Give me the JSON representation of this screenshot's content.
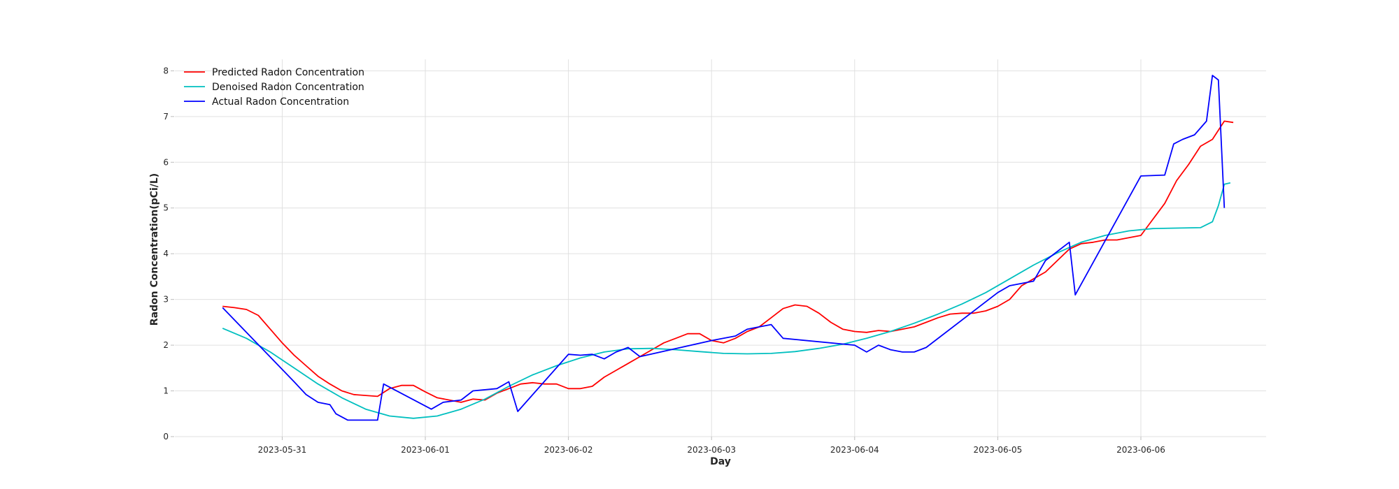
{
  "chart_data": {
    "type": "line",
    "title": "",
    "xlabel": "Day",
    "ylabel": "Radon Concentration(pCi/L)",
    "xlim": [
      "2023-05-30 06:00",
      "2023-06-06 21:00"
    ],
    "ylim": [
      0,
      8.25
    ],
    "x_ticks": [
      "2023-05-31",
      "2023-06-01",
      "2023-06-02",
      "2023-06-03",
      "2023-06-04",
      "2023-06-05",
      "2023-06-06"
    ],
    "y_ticks": [
      0,
      1,
      2,
      3,
      4,
      5,
      6,
      7,
      8
    ],
    "grid": true,
    "legend_position": "top-left",
    "series": [
      {
        "name": "Predicted Radon Concentration",
        "color": "#ff0000",
        "points": [
          [
            "2023-05-30 14:00",
            2.85
          ],
          [
            "2023-05-30 16:00",
            2.82
          ],
          [
            "2023-05-30 18:00",
            2.78
          ],
          [
            "2023-05-30 20:00",
            2.65
          ],
          [
            "2023-05-30 22:00",
            2.35
          ],
          [
            "2023-05-31 00:00",
            2.05
          ],
          [
            "2023-05-31 02:00",
            1.78
          ],
          [
            "2023-05-31 04:00",
            1.55
          ],
          [
            "2023-05-31 06:00",
            1.32
          ],
          [
            "2023-05-31 08:00",
            1.15
          ],
          [
            "2023-05-31 10:00",
            1.0
          ],
          [
            "2023-05-31 12:00",
            0.92
          ],
          [
            "2023-05-31 14:00",
            0.9
          ],
          [
            "2023-05-31 16:00",
            0.88
          ],
          [
            "2023-05-31 18:00",
            1.05
          ],
          [
            "2023-05-31 20:00",
            1.12
          ],
          [
            "2023-05-31 22:00",
            1.12
          ],
          [
            "2023-06-01 00:00",
            0.98
          ],
          [
            "2023-06-01 02:00",
            0.85
          ],
          [
            "2023-06-01 04:00",
            0.8
          ],
          [
            "2023-06-01 06:00",
            0.75
          ],
          [
            "2023-06-01 08:00",
            0.82
          ],
          [
            "2023-06-01 10:00",
            0.8
          ],
          [
            "2023-06-01 12:00",
            0.95
          ],
          [
            "2023-06-01 14:00",
            1.05
          ],
          [
            "2023-06-01 16:00",
            1.15
          ],
          [
            "2023-06-01 18:00",
            1.18
          ],
          [
            "2023-06-01 20:00",
            1.15
          ],
          [
            "2023-06-01 22:00",
            1.15
          ],
          [
            "2023-06-02 00:00",
            1.05
          ],
          [
            "2023-06-02 02:00",
            1.05
          ],
          [
            "2023-06-02 04:00",
            1.1
          ],
          [
            "2023-06-02 06:00",
            1.3
          ],
          [
            "2023-06-02 08:00",
            1.45
          ],
          [
            "2023-06-02 10:00",
            1.6
          ],
          [
            "2023-06-02 12:00",
            1.75
          ],
          [
            "2023-06-02 14:00",
            1.9
          ],
          [
            "2023-06-02 16:00",
            2.05
          ],
          [
            "2023-06-02 18:00",
            2.15
          ],
          [
            "2023-06-02 20:00",
            2.25
          ],
          [
            "2023-06-02 22:00",
            2.25
          ],
          [
            "2023-06-03 00:00",
            2.1
          ],
          [
            "2023-06-03 02:00",
            2.05
          ],
          [
            "2023-06-03 04:00",
            2.15
          ],
          [
            "2023-06-03 06:00",
            2.3
          ],
          [
            "2023-06-03 08:00",
            2.4
          ],
          [
            "2023-06-03 10:00",
            2.6
          ],
          [
            "2023-06-03 12:00",
            2.8
          ],
          [
            "2023-06-03 14:00",
            2.88
          ],
          [
            "2023-06-03 16:00",
            2.85
          ],
          [
            "2023-06-03 18:00",
            2.7
          ],
          [
            "2023-06-03 20:00",
            2.5
          ],
          [
            "2023-06-03 22:00",
            2.35
          ],
          [
            "2023-06-04 00:00",
            2.3
          ],
          [
            "2023-06-04 02:00",
            2.28
          ],
          [
            "2023-06-04 04:00",
            2.32
          ],
          [
            "2023-06-04 06:00",
            2.3
          ],
          [
            "2023-06-04 08:00",
            2.35
          ],
          [
            "2023-06-04 10:00",
            2.4
          ],
          [
            "2023-06-04 12:00",
            2.5
          ],
          [
            "2023-06-04 14:00",
            2.6
          ],
          [
            "2023-06-04 16:00",
            2.68
          ],
          [
            "2023-06-04 18:00",
            2.7
          ],
          [
            "2023-06-04 20:00",
            2.7
          ],
          [
            "2023-06-04 22:00",
            2.75
          ],
          [
            "2023-06-05 00:00",
            2.85
          ],
          [
            "2023-06-05 02:00",
            3.0
          ],
          [
            "2023-06-05 04:00",
            3.3
          ],
          [
            "2023-06-05 06:00",
            3.45
          ],
          [
            "2023-06-05 08:00",
            3.6
          ],
          [
            "2023-06-05 10:00",
            3.85
          ],
          [
            "2023-06-05 12:00",
            4.1
          ],
          [
            "2023-06-05 14:00",
            4.22
          ],
          [
            "2023-06-05 16:00",
            4.25
          ],
          [
            "2023-06-05 18:00",
            4.3
          ],
          [
            "2023-06-05 20:00",
            4.3
          ],
          [
            "2023-06-05 22:00",
            4.35
          ],
          [
            "2023-06-06 00:00",
            4.4
          ],
          [
            "2023-06-06 02:00",
            4.75
          ],
          [
            "2023-06-06 04:00",
            5.1
          ],
          [
            "2023-06-06 06:00",
            5.6
          ],
          [
            "2023-06-06 08:00",
            5.95
          ],
          [
            "2023-06-06 10:00",
            6.35
          ],
          [
            "2023-06-06 12:00",
            6.5
          ],
          [
            "2023-06-06 14:00",
            6.9
          ],
          [
            "2023-06-06 15:30",
            6.87
          ]
        ]
      },
      {
        "name": "Denoised Radon Concentration",
        "color": "#00bfbf",
        "points": [
          [
            "2023-05-30 14:00",
            2.37
          ],
          [
            "2023-05-30 18:00",
            2.15
          ],
          [
            "2023-05-30 22:00",
            1.85
          ],
          [
            "2023-05-31 02:00",
            1.5
          ],
          [
            "2023-05-31 06:00",
            1.15
          ],
          [
            "2023-05-31 10:00",
            0.85
          ],
          [
            "2023-05-31 14:00",
            0.6
          ],
          [
            "2023-05-31 18:00",
            0.45
          ],
          [
            "2023-05-31 22:00",
            0.4
          ],
          [
            "2023-06-01 02:00",
            0.45
          ],
          [
            "2023-06-01 06:00",
            0.6
          ],
          [
            "2023-06-01 10:00",
            0.82
          ],
          [
            "2023-06-01 14:00",
            1.1
          ],
          [
            "2023-06-01 18:00",
            1.35
          ],
          [
            "2023-06-01 22:00",
            1.55
          ],
          [
            "2023-06-02 02:00",
            1.72
          ],
          [
            "2023-06-02 06:00",
            1.85
          ],
          [
            "2023-06-02 10:00",
            1.92
          ],
          [
            "2023-06-02 14:00",
            1.93
          ],
          [
            "2023-06-02 18:00",
            1.9
          ],
          [
            "2023-06-02 22:00",
            1.86
          ],
          [
            "2023-06-03 02:00",
            1.82
          ],
          [
            "2023-06-03 06:00",
            1.81
          ],
          [
            "2023-06-03 10:00",
            1.82
          ],
          [
            "2023-06-03 14:00",
            1.86
          ],
          [
            "2023-06-03 18:00",
            1.93
          ],
          [
            "2023-06-03 22:00",
            2.02
          ],
          [
            "2023-06-04 02:00",
            2.15
          ],
          [
            "2023-06-04 06:00",
            2.3
          ],
          [
            "2023-06-04 10:00",
            2.48
          ],
          [
            "2023-06-04 14:00",
            2.68
          ],
          [
            "2023-06-04 18:00",
            2.9
          ],
          [
            "2023-06-04 22:00",
            3.15
          ],
          [
            "2023-06-05 02:00",
            3.45
          ],
          [
            "2023-06-05 06:00",
            3.75
          ],
          [
            "2023-06-05 10:00",
            4.02
          ],
          [
            "2023-06-05 14:00",
            4.25
          ],
          [
            "2023-06-05 18:00",
            4.4
          ],
          [
            "2023-06-05 22:00",
            4.5
          ],
          [
            "2023-06-06 02:00",
            4.55
          ],
          [
            "2023-06-06 06:00",
            4.56
          ],
          [
            "2023-06-06 10:00",
            4.57
          ],
          [
            "2023-06-06 12:00",
            4.7
          ],
          [
            "2023-06-06 13:00",
            5.05
          ],
          [
            "2023-06-06 14:00",
            5.52
          ],
          [
            "2023-06-06 15:00",
            5.55
          ]
        ]
      },
      {
        "name": "Actual Radon Concentration",
        "color": "#0000ff",
        "points": [
          [
            "2023-05-30 14:00",
            2.82
          ],
          [
            "2023-05-31 02:00",
            1.2
          ],
          [
            "2023-05-31 04:00",
            0.92
          ],
          [
            "2023-05-31 06:00",
            0.75
          ],
          [
            "2023-05-31 08:00",
            0.7
          ],
          [
            "2023-05-31 09:00",
            0.5
          ],
          [
            "2023-05-31 11:00",
            0.36
          ],
          [
            "2023-05-31 16:00",
            0.36
          ],
          [
            "2023-05-31 17:00",
            1.15
          ],
          [
            "2023-06-01 01:00",
            0.6
          ],
          [
            "2023-06-01 03:00",
            0.75
          ],
          [
            "2023-06-01 06:00",
            0.8
          ],
          [
            "2023-06-01 08:00",
            1.0
          ],
          [
            "2023-06-01 12:00",
            1.05
          ],
          [
            "2023-06-01 14:00",
            1.2
          ],
          [
            "2023-06-01 15:30",
            0.55
          ],
          [
            "2023-06-02 00:00",
            1.8
          ],
          [
            "2023-06-02 02:00",
            1.78
          ],
          [
            "2023-06-02 04:00",
            1.8
          ],
          [
            "2023-06-02 06:00",
            1.7
          ],
          [
            "2023-06-02 08:00",
            1.85
          ],
          [
            "2023-06-02 10:00",
            1.95
          ],
          [
            "2023-06-02 12:00",
            1.75
          ],
          [
            "2023-06-03 00:00",
            2.1
          ],
          [
            "2023-06-03 04:00",
            2.2
          ],
          [
            "2023-06-03 06:00",
            2.35
          ],
          [
            "2023-06-03 08:00",
            2.4
          ],
          [
            "2023-06-03 10:00",
            2.45
          ],
          [
            "2023-06-03 12:00",
            2.15
          ],
          [
            "2023-06-04 00:00",
            2.0
          ],
          [
            "2023-06-04 02:00",
            1.85
          ],
          [
            "2023-06-04 04:00",
            2.0
          ],
          [
            "2023-06-04 06:00",
            1.9
          ],
          [
            "2023-06-04 08:00",
            1.85
          ],
          [
            "2023-06-04 10:00",
            1.85
          ],
          [
            "2023-06-04 12:00",
            1.95
          ],
          [
            "2023-06-05 00:00",
            3.15
          ],
          [
            "2023-06-05 02:00",
            3.3
          ],
          [
            "2023-06-05 06:00",
            3.4
          ],
          [
            "2023-06-05 08:00",
            3.85
          ],
          [
            "2023-06-05 12:00",
            4.25
          ],
          [
            "2023-06-05 13:00",
            3.1
          ],
          [
            "2023-06-06 00:00",
            5.7
          ],
          [
            "2023-06-06 04:00",
            5.72
          ],
          [
            "2023-06-06 05:30",
            6.4
          ],
          [
            "2023-06-06 07:00",
            6.5
          ],
          [
            "2023-06-06 09:00",
            6.6
          ],
          [
            "2023-06-06 11:00",
            6.9
          ],
          [
            "2023-06-06 12:00",
            7.9
          ],
          [
            "2023-06-06 13:00",
            7.8
          ],
          [
            "2023-06-06 14:00",
            5.0
          ]
        ]
      }
    ]
  }
}
